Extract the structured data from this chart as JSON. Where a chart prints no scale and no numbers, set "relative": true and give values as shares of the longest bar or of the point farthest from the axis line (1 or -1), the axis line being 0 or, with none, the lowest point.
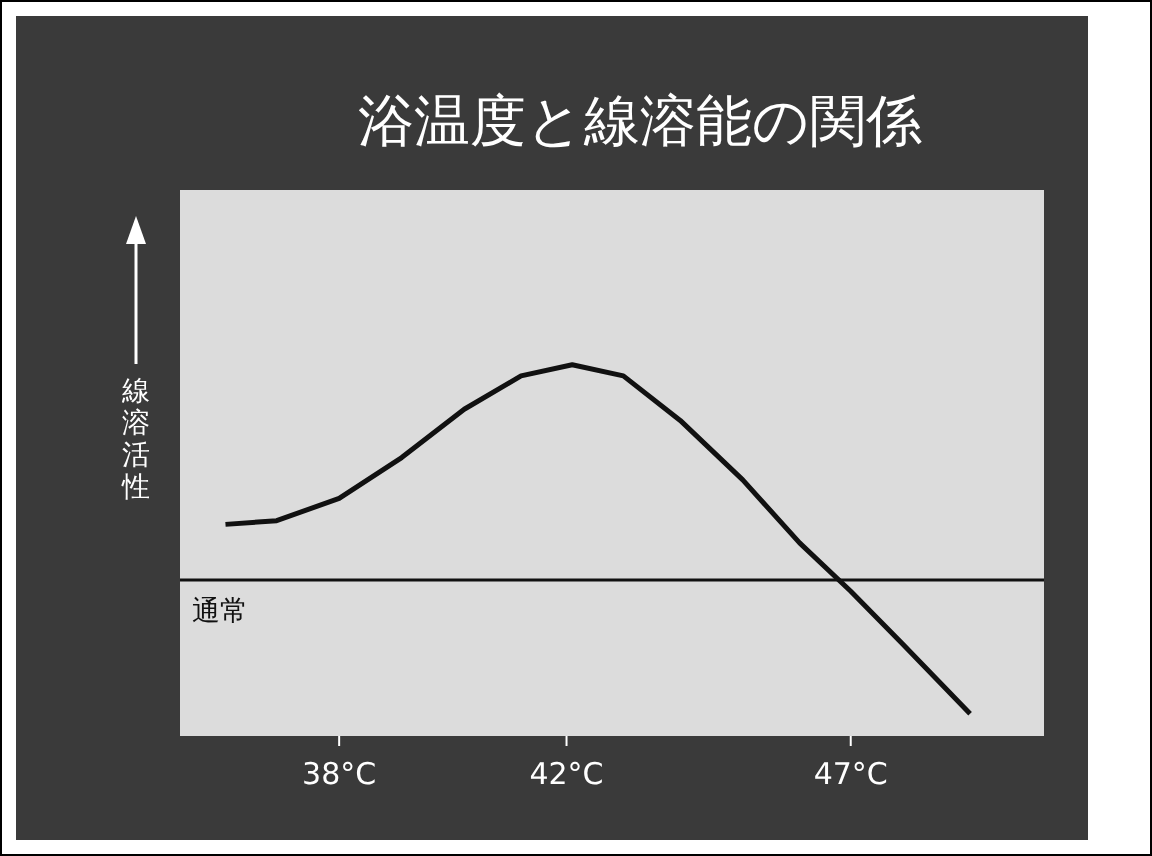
{
  "chart_data": {
    "type": "line",
    "title": "浴温度と線溶能の関係",
    "ylabel": "線溶活性",
    "relative": true,
    "x": [
      36.0,
      36.9,
      38.0,
      39.1,
      40.2,
      41.2,
      42.1,
      43.0,
      44.0,
      45.1,
      46.1,
      47.0,
      47.9,
      49.1
    ],
    "series": [
      {
        "color": "#111111",
        "values": [
          0.57,
          0.58,
          0.64,
          0.75,
          0.88,
          0.97,
          1.0,
          0.97,
          0.85,
          0.69,
          0.52,
          0.39,
          0.25,
          0.06
        ]
      }
    ],
    "xlim": [
      35.2,
      50.4
    ],
    "xticks": [
      {
        "value": 38,
        "label": "38°C"
      },
      {
        "value": 42,
        "label": "42°C"
      },
      {
        "value": 47,
        "label": "47°C"
      }
    ],
    "ref_lines": [
      {
        "axis": "y",
        "value": 0.42,
        "label": "通常",
        "color": "#111111"
      }
    ],
    "line_style": "solid",
    "marker": "none"
  }
}
